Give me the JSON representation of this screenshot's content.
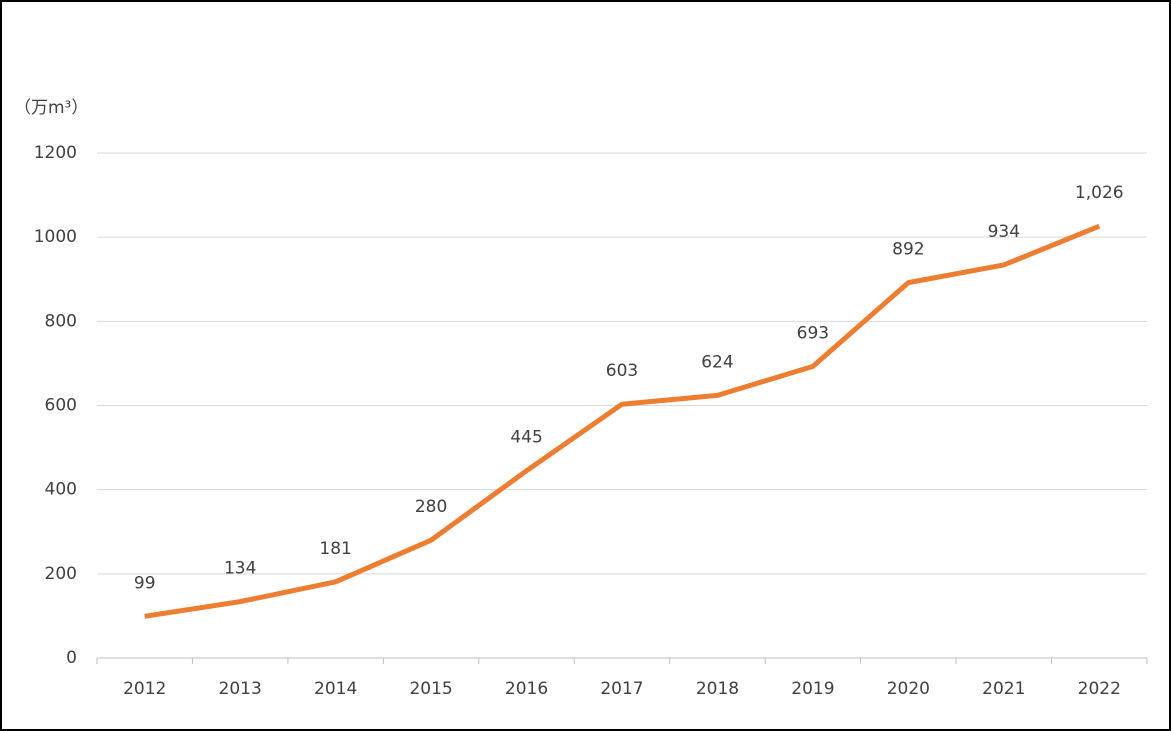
{
  "chart_data": {
    "type": "line",
    "y_label": "（万m³）",
    "categories": [
      "2012",
      "2013",
      "2014",
      "2015",
      "2016",
      "2017",
      "2018",
      "2019",
      "2020",
      "2021",
      "2022"
    ],
    "series": [
      {
        "color": "#ed7d31",
        "values": [
          99,
          134,
          181,
          280,
          445,
          603,
          624,
          693,
          892,
          934,
          1026
        ],
        "value_labels": [
          "99",
          "134",
          "181",
          "280",
          "445",
          "603",
          "624",
          "693",
          "892",
          "934",
          "1,026"
        ]
      }
    ],
    "ylim": [
      0,
      1200
    ],
    "yticks": [
      0,
      200,
      400,
      600,
      800,
      1000,
      1200
    ],
    "grid": true
  }
}
